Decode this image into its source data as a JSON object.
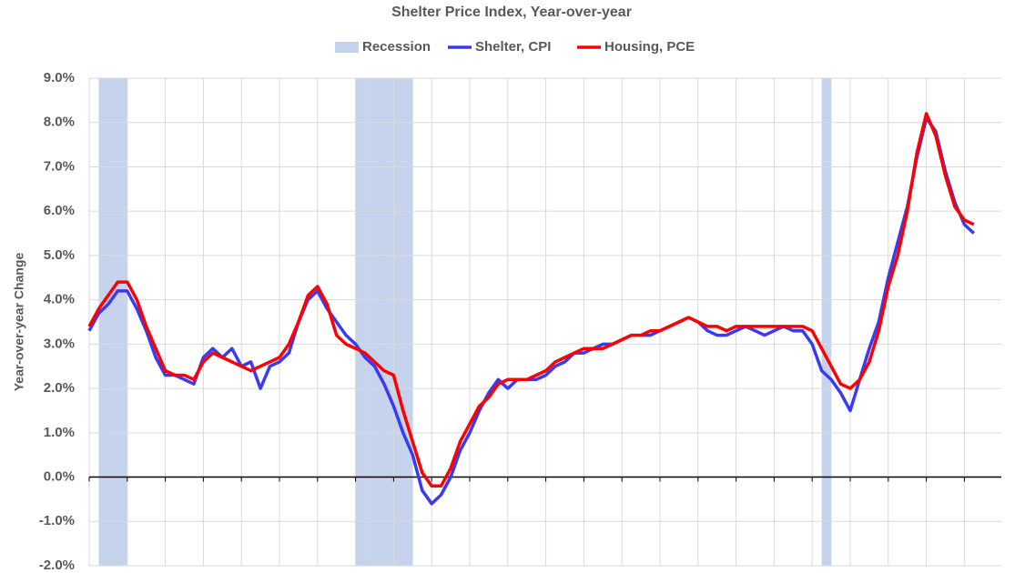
{
  "chart_data": {
    "type": "line",
    "title": "Shelter Price Index, Year-over-year",
    "y_label": "Year-over-year Change",
    "series": [
      {
        "name": "Recession",
        "type": "band",
        "color": "#c5d3ec",
        "values": [
          null,
          9,
          9,
          9,
          null,
          null,
          null,
          null,
          null,
          null,
          null,
          null,
          null,
          null,
          null,
          null,
          null,
          null,
          null,
          null,
          null,
          null,
          null,
          null,
          null,
          null,
          null,
          null,
          9,
          9,
          9,
          9,
          9,
          9,
          null,
          null,
          null,
          null,
          null,
          null,
          null,
          null,
          null,
          null,
          null,
          null,
          null,
          null,
          null,
          null,
          null,
          null,
          null,
          null,
          null,
          null,
          null,
          null,
          null,
          null,
          null,
          null,
          null,
          null,
          null,
          null,
          null,
          null,
          null,
          null,
          null,
          null,
          null,
          null,
          null,
          null,
          null,
          9,
          null,
          null,
          null,
          null,
          null,
          null,
          null,
          null,
          null,
          null,
          null,
          null,
          null,
          null,
          null,
          null
        ]
      },
      {
        "name": "Shelter, CPI",
        "color": "#3a3af2",
        "values": [
          3.3,
          3.7,
          3.9,
          4.2,
          4.2,
          3.8,
          3.3,
          2.7,
          2.3,
          2.3,
          2.2,
          2.1,
          2.7,
          2.9,
          2.7,
          2.9,
          2.5,
          2.6,
          2.0,
          2.5,
          2.6,
          2.8,
          3.5,
          4.0,
          4.2,
          3.8,
          3.5,
          3.2,
          3.0,
          2.7,
          2.5,
          2.1,
          1.6,
          1.0,
          0.5,
          -0.3,
          -0.6,
          -0.4,
          0.0,
          0.6,
          1.0,
          1.5,
          1.9,
          2.2,
          2.0,
          2.2,
          2.2,
          2.2,
          2.3,
          2.5,
          2.6,
          2.8,
          2.8,
          2.9,
          3.0,
          3.0,
          3.1,
          3.2,
          3.2,
          3.2,
          3.3,
          3.4,
          3.5,
          3.6,
          3.5,
          3.3,
          3.2,
          3.2,
          3.3,
          3.4,
          3.3,
          3.2,
          3.3,
          3.4,
          3.3,
          3.3,
          3.0,
          2.4,
          2.2,
          1.9,
          1.5,
          2.2,
          2.9,
          3.5,
          4.5,
          5.3,
          6.1,
          7.2,
          8.1,
          7.8,
          6.9,
          6.2,
          5.7,
          5.5
        ]
      },
      {
        "name": "Housing, PCE",
        "color": "#ff0000",
        "values": [
          3.4,
          3.8,
          4.1,
          4.4,
          4.4,
          4.0,
          3.4,
          2.9,
          2.4,
          2.3,
          2.3,
          2.2,
          2.6,
          2.8,
          2.7,
          2.6,
          2.5,
          2.4,
          2.5,
          2.6,
          2.7,
          3.0,
          3.5,
          4.1,
          4.3,
          3.9,
          3.2,
          3.0,
          2.9,
          2.8,
          2.6,
          2.4,
          2.3,
          1.5,
          0.8,
          0.1,
          -0.2,
          -0.2,
          0.2,
          0.8,
          1.2,
          1.6,
          1.8,
          2.1,
          2.2,
          2.2,
          2.2,
          2.3,
          2.4,
          2.6,
          2.7,
          2.8,
          2.9,
          2.9,
          2.9,
          3.0,
          3.1,
          3.2,
          3.2,
          3.3,
          3.3,
          3.4,
          3.5,
          3.6,
          3.5,
          3.4,
          3.4,
          3.3,
          3.4,
          3.4,
          3.4,
          3.4,
          3.4,
          3.4,
          3.4,
          3.4,
          3.3,
          2.9,
          2.5,
          2.1,
          2.0,
          2.2,
          2.6,
          3.3,
          4.3,
          5.0,
          6.0,
          7.3,
          8.2,
          7.7,
          6.8,
          6.1,
          5.8,
          5.7
        ]
      }
    ],
    "ylim": [
      -2,
      9
    ],
    "yticks": [
      {
        "value": -2,
        "label": "-2.0%"
      },
      {
        "value": -1,
        "label": "-1.0%"
      },
      {
        "value": 0,
        "label": "0.0%"
      },
      {
        "value": 1,
        "label": "1.0%"
      },
      {
        "value": 2,
        "label": "2.0%"
      },
      {
        "value": 3,
        "label": "3.0%"
      },
      {
        "value": 4,
        "label": "4.0%"
      },
      {
        "value": 5,
        "label": "5.0%"
      },
      {
        "value": 6,
        "label": "6.0%"
      },
      {
        "value": 7,
        "label": "7.0%"
      },
      {
        "value": 8,
        "label": "8.0%"
      },
      {
        "value": 9,
        "label": "9.0%"
      }
    ],
    "grid": true,
    "legend": "top"
  }
}
